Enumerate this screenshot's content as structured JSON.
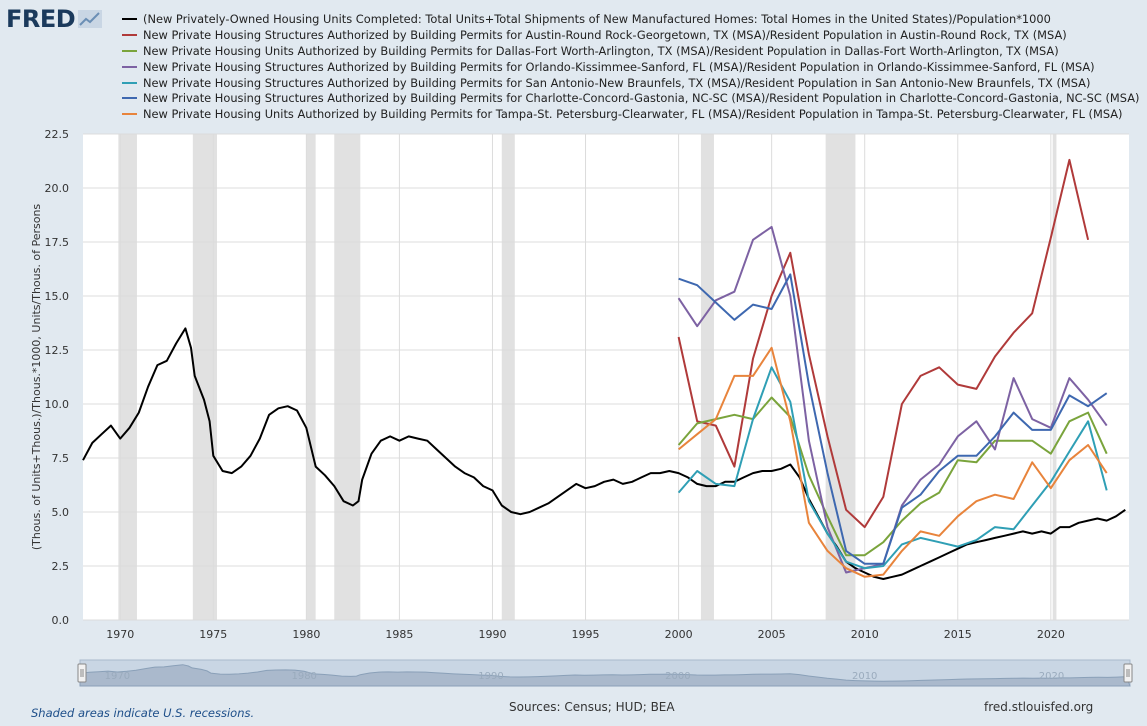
{
  "logo": {
    "text": "FRED"
  },
  "legend": [
    "(New Privately-Owned Housing Units Completed: Total Units+Total Shipments of New Manufactured Homes: Total Homes in the United States)/Population*1000",
    "New Private Housing Structures Authorized by Building Permits for Austin-Round Rock-Georgetown, TX (MSA)/Resident Population in Austin-Round Rock, TX (MSA)",
    "New Private Housing Units Authorized by Building Permits for Dallas-Fort Worth-Arlington, TX (MSA)/Resident Population in Dallas-Fort Worth-Arlington, TX (MSA)",
    "New Private Housing Structures Authorized by Building Permits for Orlando-Kissimmee-Sanford, FL (MSA)/Resident Population in Orlando-Kissimmee-Sanford, FL (MSA)",
    "New Private Housing Structures Authorized by Building Permits for San Antonio-New Braunfels, TX (MSA)/Resident Population in San Antonio-New Braunfels, TX (MSA)",
    "New Private Housing Structures Authorized by Building Permits for Charlotte-Concord-Gastonia, NC-SC (MSA)/Resident Population in Charlotte-Concord-Gastonia, NC-SC (MSA)",
    "New Private Housing Units Authorized by Building Permits for Tampa-St. Petersburg-Clearwater, FL (MSA)/Resident Population in Tampa-St. Petersburg-Clearwater, FL (MSA)"
  ],
  "footer": {
    "recession_note": "Shaded areas indicate U.S. recessions.",
    "sources": "Sources: Census; HUD; BEA",
    "site": "fred.stlouisfed.org"
  },
  "navigator": {
    "tick_labels": [
      "1970",
      "1980",
      "1990",
      "2000",
      "2010",
      "2020"
    ]
  },
  "chart_data": {
    "type": "line",
    "ylabel": "(Thous. of Units+Thous.)/Thous.*1000,  Units/Thous. of Persons",
    "xlim": [
      1968,
      2024.2
    ],
    "ylim": [
      0,
      22.5
    ],
    "x_ticks": [
      1970,
      1975,
      1980,
      1985,
      1990,
      1995,
      2000,
      2005,
      2010,
      2015,
      2020
    ],
    "y_ticks": [
      "0.0",
      "2.5",
      "5.0",
      "7.5",
      "10.0",
      "12.5",
      "15.0",
      "17.5",
      "20.0",
      "22.5"
    ],
    "grid": true,
    "recessions": [
      [
        1969.9,
        1970.9
      ],
      [
        1973.9,
        1975.2
      ],
      [
        1980.0,
        1980.5
      ],
      [
        1981.5,
        1982.9
      ],
      [
        1990.5,
        1991.2
      ],
      [
        2001.2,
        2001.9
      ],
      [
        2007.9,
        2009.5
      ],
      [
        2020.1,
        2020.3
      ]
    ],
    "series": [
      {
        "color": "#000000",
        "points": [
          [
            1968.0,
            7.4
          ],
          [
            1968.5,
            8.2
          ],
          [
            1969.0,
            8.6
          ],
          [
            1969.5,
            9.0
          ],
          [
            1970.0,
            8.4
          ],
          [
            1970.5,
            8.9
          ],
          [
            1971.0,
            9.6
          ],
          [
            1971.5,
            10.8
          ],
          [
            1972.0,
            11.8
          ],
          [
            1972.5,
            12.0
          ],
          [
            1973.0,
            12.8
          ],
          [
            1973.5,
            13.5
          ],
          [
            1973.8,
            12.6
          ],
          [
            1974.0,
            11.3
          ],
          [
            1974.5,
            10.2
          ],
          [
            1974.8,
            9.2
          ],
          [
            1975.0,
            7.6
          ],
          [
            1975.5,
            6.9
          ],
          [
            1976.0,
            6.8
          ],
          [
            1976.5,
            7.1
          ],
          [
            1977.0,
            7.6
          ],
          [
            1977.5,
            8.4
          ],
          [
            1978.0,
            9.5
          ],
          [
            1978.5,
            9.8
          ],
          [
            1979.0,
            9.9
          ],
          [
            1979.5,
            9.7
          ],
          [
            1980.0,
            8.9
          ],
          [
            1980.5,
            7.1
          ],
          [
            1981.0,
            6.7
          ],
          [
            1981.5,
            6.2
          ],
          [
            1982.0,
            5.5
          ],
          [
            1982.5,
            5.3
          ],
          [
            1982.8,
            5.5
          ],
          [
            1983.0,
            6.5
          ],
          [
            1983.5,
            7.7
          ],
          [
            1984.0,
            8.3
          ],
          [
            1984.5,
            8.5
          ],
          [
            1985.0,
            8.3
          ],
          [
            1985.5,
            8.5
          ],
          [
            1986.0,
            8.4
          ],
          [
            1986.5,
            8.3
          ],
          [
            1987.0,
            7.9
          ],
          [
            1987.5,
            7.5
          ],
          [
            1988.0,
            7.1
          ],
          [
            1988.5,
            6.8
          ],
          [
            1989.0,
            6.6
          ],
          [
            1989.5,
            6.2
          ],
          [
            1990.0,
            6.0
          ],
          [
            1990.5,
            5.3
          ],
          [
            1991.0,
            5.0
          ],
          [
            1991.5,
            4.9
          ],
          [
            1992.0,
            5.0
          ],
          [
            1992.5,
            5.2
          ],
          [
            1993.0,
            5.4
          ],
          [
            1993.5,
            5.7
          ],
          [
            1994.0,
            6.0
          ],
          [
            1994.5,
            6.3
          ],
          [
            1995.0,
            6.1
          ],
          [
            1995.5,
            6.2
          ],
          [
            1996.0,
            6.4
          ],
          [
            1996.5,
            6.5
          ],
          [
            1997.0,
            6.3
          ],
          [
            1997.5,
            6.4
          ],
          [
            1998.0,
            6.6
          ],
          [
            1998.5,
            6.8
          ],
          [
            1999.0,
            6.8
          ],
          [
            1999.5,
            6.9
          ],
          [
            2000.0,
            6.8
          ],
          [
            2000.5,
            6.6
          ],
          [
            2001.0,
            6.3
          ],
          [
            2001.5,
            6.2
          ],
          [
            2002.0,
            6.2
          ],
          [
            2002.5,
            6.4
          ],
          [
            2003.0,
            6.4
          ],
          [
            2003.5,
            6.6
          ],
          [
            2004.0,
            6.8
          ],
          [
            2004.5,
            6.9
          ],
          [
            2005.0,
            6.9
          ],
          [
            2005.5,
            7.0
          ],
          [
            2006.0,
            7.2
          ],
          [
            2006.5,
            6.6
          ],
          [
            2007.0,
            5.6
          ],
          [
            2007.5,
            4.8
          ],
          [
            2008.0,
            4.0
          ],
          [
            2008.5,
            3.4
          ],
          [
            2009.0,
            2.7
          ],
          [
            2009.5,
            2.4
          ],
          [
            2010.0,
            2.2
          ],
          [
            2010.5,
            2.0
          ],
          [
            2011.0,
            1.9
          ],
          [
            2011.5,
            2.0
          ],
          [
            2012.0,
            2.1
          ],
          [
            2012.5,
            2.3
          ],
          [
            2013.0,
            2.5
          ],
          [
            2013.5,
            2.7
          ],
          [
            2014.0,
            2.9
          ],
          [
            2014.5,
            3.1
          ],
          [
            2015.0,
            3.3
          ],
          [
            2015.5,
            3.5
          ],
          [
            2016.0,
            3.6
          ],
          [
            2016.5,
            3.7
          ],
          [
            2017.0,
            3.8
          ],
          [
            2017.5,
            3.9
          ],
          [
            2018.0,
            4.0
          ],
          [
            2018.5,
            4.1
          ],
          [
            2019.0,
            4.0
          ],
          [
            2019.5,
            4.1
          ],
          [
            2020.0,
            4.0
          ],
          [
            2020.5,
            4.3
          ],
          [
            2021.0,
            4.3
          ],
          [
            2021.5,
            4.5
          ],
          [
            2022.0,
            4.6
          ],
          [
            2022.5,
            4.7
          ],
          [
            2023.0,
            4.6
          ],
          [
            2023.5,
            4.8
          ],
          [
            2024.0,
            5.1
          ]
        ]
      },
      {
        "color": "#b03a3a",
        "points": [
          [
            2000,
            13.1
          ],
          [
            2001,
            9.2
          ],
          [
            2002,
            9.0
          ],
          [
            2003,
            7.1
          ],
          [
            2004,
            12.1
          ],
          [
            2005,
            15.0
          ],
          [
            2006,
            17.0
          ],
          [
            2007,
            12.3
          ],
          [
            2008,
            8.5
          ],
          [
            2009,
            5.1
          ],
          [
            2010,
            4.3
          ],
          [
            2011,
            5.7
          ],
          [
            2012,
            10.0
          ],
          [
            2013,
            11.3
          ],
          [
            2014,
            11.7
          ],
          [
            2015,
            10.9
          ],
          [
            2016,
            10.7
          ],
          [
            2017,
            12.2
          ],
          [
            2018,
            13.3
          ],
          [
            2019,
            14.2
          ],
          [
            2020,
            17.7
          ],
          [
            2021,
            21.3
          ],
          [
            2022,
            17.6
          ]
        ]
      },
      {
        "color": "#7aa43c",
        "points": [
          [
            2000,
            8.1
          ],
          [
            2001,
            9.1
          ],
          [
            2002,
            9.3
          ],
          [
            2003,
            9.5
          ],
          [
            2004,
            9.3
          ],
          [
            2005,
            10.3
          ],
          [
            2006,
            9.4
          ],
          [
            2007,
            6.7
          ],
          [
            2008,
            4.8
          ],
          [
            2009,
            3.0
          ],
          [
            2010,
            3.0
          ],
          [
            2011,
            3.6
          ],
          [
            2012,
            4.6
          ],
          [
            2013,
            5.4
          ],
          [
            2014,
            5.9
          ],
          [
            2015,
            7.4
          ],
          [
            2016,
            7.3
          ],
          [
            2017,
            8.3
          ],
          [
            2018,
            8.3
          ],
          [
            2019,
            8.3
          ],
          [
            2020,
            7.7
          ],
          [
            2021,
            9.2
          ],
          [
            2022,
            9.6
          ],
          [
            2023,
            7.7
          ]
        ]
      },
      {
        "color": "#7d62a3",
        "points": [
          [
            2000,
            14.9
          ],
          [
            2001,
            13.6
          ],
          [
            2002,
            14.8
          ],
          [
            2003,
            15.2
          ],
          [
            2004,
            17.6
          ],
          [
            2005,
            18.2
          ],
          [
            2006,
            15.0
          ],
          [
            2007,
            8.3
          ],
          [
            2008,
            4.3
          ],
          [
            2009,
            2.2
          ],
          [
            2010,
            2.4
          ],
          [
            2011,
            2.6
          ],
          [
            2012,
            5.3
          ],
          [
            2013,
            6.5
          ],
          [
            2014,
            7.2
          ],
          [
            2015,
            8.5
          ],
          [
            2016,
            9.2
          ],
          [
            2017,
            7.9
          ],
          [
            2018,
            11.2
          ],
          [
            2019,
            9.3
          ],
          [
            2020,
            8.9
          ],
          [
            2021,
            11.2
          ],
          [
            2022,
            10.2
          ],
          [
            2023,
            9.0
          ]
        ]
      },
      {
        "color": "#2f9fb5",
        "points": [
          [
            2000,
            5.9
          ],
          [
            2001,
            6.9
          ],
          [
            2002,
            6.3
          ],
          [
            2003,
            6.2
          ],
          [
            2004,
            9.3
          ],
          [
            2005,
            11.7
          ],
          [
            2006,
            10.1
          ],
          [
            2007,
            5.5
          ],
          [
            2008,
            4.0
          ],
          [
            2009,
            2.7
          ],
          [
            2010,
            2.4
          ],
          [
            2011,
            2.5
          ],
          [
            2012,
            3.5
          ],
          [
            2013,
            3.8
          ],
          [
            2014,
            3.6
          ],
          [
            2015,
            3.4
          ],
          [
            2016,
            3.7
          ],
          [
            2017,
            4.3
          ],
          [
            2018,
            4.2
          ],
          [
            2019,
            5.3
          ],
          [
            2020,
            6.4
          ],
          [
            2021,
            7.8
          ],
          [
            2022,
            9.2
          ],
          [
            2023,
            6.0
          ]
        ]
      },
      {
        "color": "#3e68b0",
        "points": [
          [
            2000,
            15.8
          ],
          [
            2001,
            15.5
          ],
          [
            2002,
            14.7
          ],
          [
            2003,
            13.9
          ],
          [
            2004,
            14.6
          ],
          [
            2005,
            14.4
          ],
          [
            2006,
            16.0
          ],
          [
            2007,
            10.9
          ],
          [
            2008,
            6.8
          ],
          [
            2009,
            3.2
          ],
          [
            2010,
            2.6
          ],
          [
            2011,
            2.6
          ],
          [
            2012,
            5.2
          ],
          [
            2013,
            5.8
          ],
          [
            2014,
            6.9
          ],
          [
            2015,
            7.6
          ],
          [
            2016,
            7.6
          ],
          [
            2017,
            8.5
          ],
          [
            2018,
            9.6
          ],
          [
            2019,
            8.8
          ],
          [
            2020,
            8.8
          ],
          [
            2021,
            10.4
          ],
          [
            2022,
            9.9
          ],
          [
            2023,
            10.5
          ]
        ]
      },
      {
        "color": "#e8843c",
        "points": [
          [
            2000,
            7.9
          ],
          [
            2001,
            8.6
          ],
          [
            2002,
            9.3
          ],
          [
            2003,
            11.3
          ],
          [
            2004,
            11.3
          ],
          [
            2005,
            12.6
          ],
          [
            2006,
            9.2
          ],
          [
            2007,
            4.5
          ],
          [
            2008,
            3.2
          ],
          [
            2009,
            2.4
          ],
          [
            2010,
            2.0
          ],
          [
            2011,
            2.1
          ],
          [
            2012,
            3.2
          ],
          [
            2013,
            4.1
          ],
          [
            2014,
            3.9
          ],
          [
            2015,
            4.8
          ],
          [
            2016,
            5.5
          ],
          [
            2017,
            5.8
          ],
          [
            2018,
            5.6
          ],
          [
            2019,
            7.3
          ],
          [
            2020,
            6.1
          ],
          [
            2021,
            7.4
          ],
          [
            2022,
            8.1
          ],
          [
            2023,
            6.8
          ]
        ]
      }
    ]
  }
}
